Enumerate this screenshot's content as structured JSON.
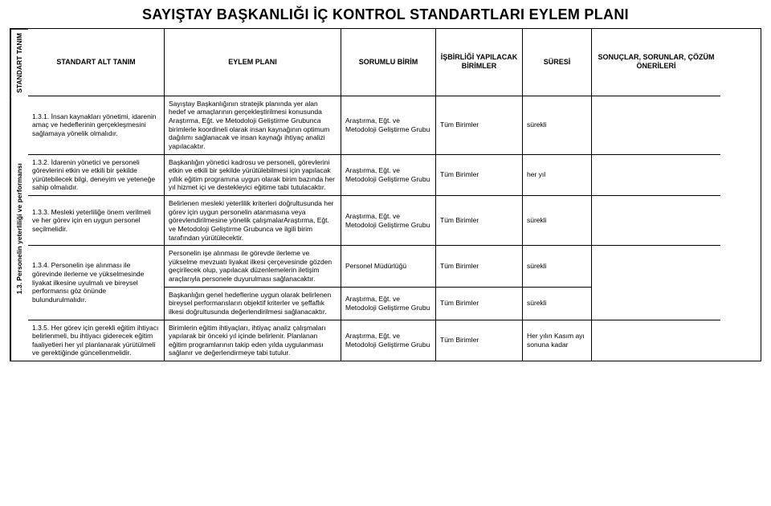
{
  "title": "SAYIŞTAY BAŞKANLIĞI İÇ KONTROL STANDARTLARI EYLEM PLANI",
  "headers": {
    "c0": "STANDART TANIM",
    "c1": "STANDART ALT TANIM",
    "c2": "EYLEM PLANI",
    "c3": "SORUMLU BİRİM",
    "c4": "İŞBİRLİĞİ YAPILACAK BİRİMLER",
    "c5": "SÜRESİ",
    "c6": "SONUÇLAR, SORUNLAR, ÇÖZÜM ÖNERİLERİ"
  },
  "sidebar": "1.3. Personelin yeterliliği ve performansı",
  "rows": [
    {
      "alt": "1.3.1. İnsan kaynakları yönetimi, idarenin amaç ve hedeflerinin gerçekleşmesini sağlamaya yönelik olmalıdır.",
      "plan": "Sayıştay Başkanlığının stratejik planında yer alan hedef ve amaçlarının gerçekleştirilmesi konusunda Araştırma, Eğt. ve Metodoloji Geliştirme Grubunca birimlerle koordineli olarak insan kaynağının optimum dağılımı sağlanacak ve insan kaynağı ihtiyaç analizi yapılacaktır.",
      "sorumlu": "Araştırma, Eğt. ve Metodoloji Geliştirme Grubu",
      "isbirligi": "Tüm Birimler",
      "sure": "sürekli",
      "sonuc": ""
    },
    {
      "alt": "1.3.2. İdarenin yönetici ve personeli görevlerini etkin ve etkili bir şekilde yürütebilecek bilgi, deneyim ve yeteneğe sahip olmalıdır.",
      "plan": "Başkanlığın yönetici kadrosu ve personeli, görevlerini etkin ve etkili bir şekilde yürütülebilmesi için yapılacak yıllık eğitim programına uygun olarak birim bazında her yıl hizmet içi ve destekleyici eğitime tabi tutulacaktır.",
      "sorumlu": "Araştırma, Eğt. ve Metodoloji Geliştirme Grubu",
      "isbirligi": "Tüm Birimler",
      "sure": "her yıl",
      "sonuc": ""
    },
    {
      "alt": "1.3.3. Mesleki yeterliliğe önem verilmeli ve her görev için en uygun personel seçilmelidir.",
      "plan": "Belirlenen mesleki yeterlilik kriterleri doğrultusunda her görev için uygun personelin atanmasına veya görevlendirilmesine yönelik çalışmalarAraştırma, Eğt. ve Metodoloji Geliştirme Grubunca ve ilgili birim tarafından yürütülecektir.",
      "sorumlu": "Araştırma, Eğt. ve Metodoloji Geliştirme Grubu",
      "isbirligi": "Tüm Birimler",
      "sure": "sürekli",
      "sonuc": ""
    },
    {
      "alt": "1.3.4. Personelin işe alınması ile görevinde ilerleme ve yükselmesinde liyakat ilkesine uyulmalı ve bireysel performansı göz önünde bulundurulmalıdır.",
      "plan_a": "Personelin işe alınması ile görevde ilerleme ve yükselme mevzuatı liyakat ilkesi çerçevesinde gözden geçirilecek olup, yapılacak düzenlemelerin iletişim araçlarıyla personele duyurulması sağlanacaktır.",
      "plan_b": "Başkanlığın genel hedeflerine uygun olarak belirlenen bireysel performansların objektif kriterler ve şeffaflık ilkesi doğrultusunda değerlendirilmesi sağlanacaktır.",
      "sorumlu_a": "Personel Müdürlüğü",
      "sorumlu_b": "Araştırma, Eğt. ve Metodoloji Geliştirme Grubu",
      "isbirligi_a": "Tüm Birimler",
      "isbirligi_b": "Tüm Birimler",
      "sure_a": "sürekli",
      "sure_b": "sürekli",
      "sonuc": ""
    },
    {
      "alt": "1.3.5. Her görev için gerekli eğitim ihtiyacı belirlenmeli, bu ihtiyacı giderecek eğitim faaliyetleri her yıl planlanarak yürütülmeli ve gerektiğinde güncellenmelidir.",
      "plan": "Birimlerin eğitim ihtiyaçları, ihtiyaç analiz çalışmaları yapılarak bir önceki yıl içinde belirlenir. Planlanan eğitim programlarının takip eden yılda uygulanması sağlanır ve değerlendirmeye tabi tutulur.",
      "sorumlu": "Araştırma, Eğt. ve Metodoloji Geliştirme Grubu",
      "isbirligi": "Tüm Birimler",
      "sure": "Her yılın Kasım ayı sonuna kadar",
      "sonuc": ""
    }
  ]
}
